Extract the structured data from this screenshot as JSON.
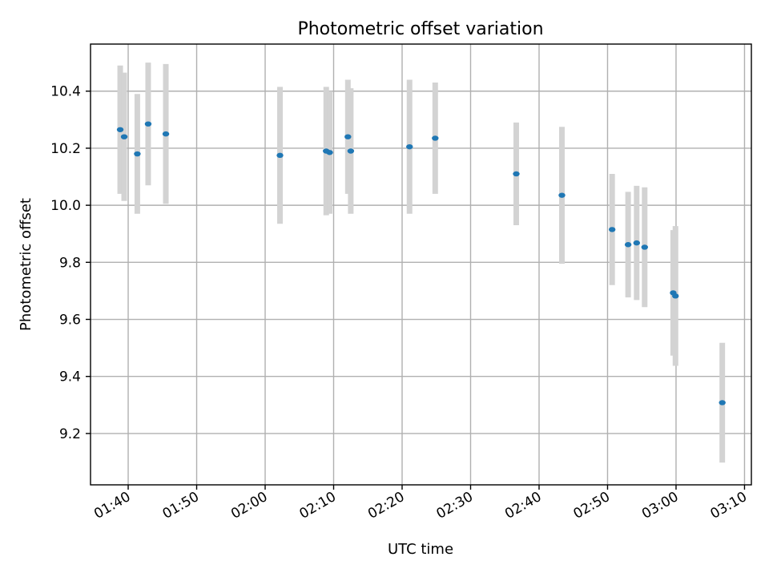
{
  "chart_data": {
    "type": "scatter",
    "title": "Photometric offset variation",
    "xlabel": "UTC time",
    "ylabel": "Photometric offset",
    "xlim": [
      "01:34:30",
      "03:11:00"
    ],
    "ylim": [
      9.02,
      10.565
    ],
    "x_ticks": [
      "01:40",
      "01:50",
      "02:00",
      "02:10",
      "02:20",
      "02:30",
      "02:40",
      "02:50",
      "03:00",
      "03:10"
    ],
    "y_ticks": [
      "9.2",
      "9.4",
      "9.6",
      "9.8",
      "10.0",
      "10.2",
      "10.4"
    ],
    "grid": true,
    "marker_color": "#1f77b4",
    "errorbar_color": "#d3d3d3",
    "points": [
      {
        "x": "01:38:50",
        "y": 10.265,
        "yerr": 0.225
      },
      {
        "x": "01:39:25",
        "y": 10.24,
        "yerr": 0.225
      },
      {
        "x": "01:41:20",
        "y": 10.18,
        "yerr": 0.21
      },
      {
        "x": "01:42:55",
        "y": 10.285,
        "yerr": 0.215
      },
      {
        "x": "01:45:30",
        "y": 10.25,
        "yerr": 0.245
      },
      {
        "x": "02:02:10",
        "y": 10.175,
        "yerr": 0.24
      },
      {
        "x": "02:08:55",
        "y": 10.19,
        "yerr": 0.225
      },
      {
        "x": "02:09:25",
        "y": 10.185,
        "yerr": 0.215
      },
      {
        "x": "02:12:05",
        "y": 10.24,
        "yerr": 0.2
      },
      {
        "x": "02:12:30",
        "y": 10.19,
        "yerr": 0.22
      },
      {
        "x": "02:21:05",
        "y": 10.205,
        "yerr": 0.235
      },
      {
        "x": "02:24:50",
        "y": 10.235,
        "yerr": 0.195
      },
      {
        "x": "02:36:40",
        "y": 10.11,
        "yerr": 0.18
      },
      {
        "x": "02:43:20",
        "y": 10.035,
        "yerr": 0.24
      },
      {
        "x": "02:50:40",
        "y": 9.915,
        "yerr": 0.195
      },
      {
        "x": "02:53:00",
        "y": 9.862,
        "yerr": 0.185
      },
      {
        "x": "02:54:15",
        "y": 9.868,
        "yerr": 0.2
      },
      {
        "x": "02:55:25",
        "y": 9.853,
        "yerr": 0.21
      },
      {
        "x": "02:59:35",
        "y": 9.693,
        "yerr": 0.22
      },
      {
        "x": "02:59:55",
        "y": 9.682,
        "yerr": 0.245
      },
      {
        "x": "03:06:45",
        "y": 9.308,
        "yerr": 0.21
      }
    ]
  }
}
